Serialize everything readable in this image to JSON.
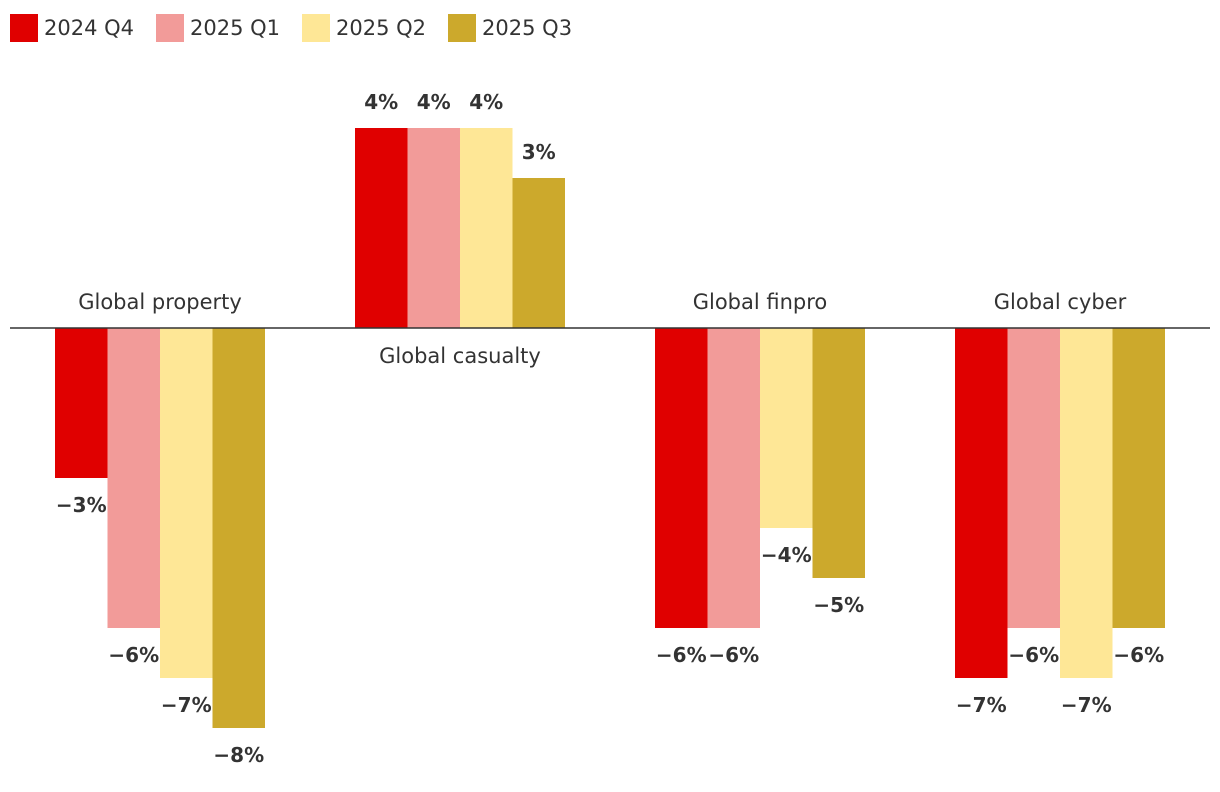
{
  "chart_data": {
    "type": "bar",
    "title": "",
    "xlabel": "",
    "ylabel": "",
    "ylim": [
      -8,
      4
    ],
    "grid": false,
    "legend_position": "top-left",
    "categories": [
      "Global property",
      "Global casualty",
      "Global finpro",
      "Global cyber"
    ],
    "series": [
      {
        "name": "2024 Q4",
        "color": "#e00000",
        "values": [
          -3,
          4,
          -6,
          -7
        ],
        "labels": [
          "−3%",
          "4%",
          "−6%",
          "−7%"
        ]
      },
      {
        "name": "2025 Q1",
        "color": "#f29b99",
        "values": [
          -6,
          4,
          -6,
          -6
        ],
        "labels": [
          "−6%",
          "4%",
          "−6%",
          "−6%"
        ]
      },
      {
        "name": "2025 Q2",
        "color": "#fee796",
        "values": [
          -7,
          4,
          -4,
          -7
        ],
        "labels": [
          "−7%",
          "4%",
          "−4%",
          "−7%"
        ]
      },
      {
        "name": "2025 Q3",
        "color": "#cca92c",
        "values": [
          -8,
          3,
          -5,
          -6
        ],
        "labels": [
          "−8%",
          "3%",
          "−5%",
          "−6%"
        ]
      }
    ]
  }
}
